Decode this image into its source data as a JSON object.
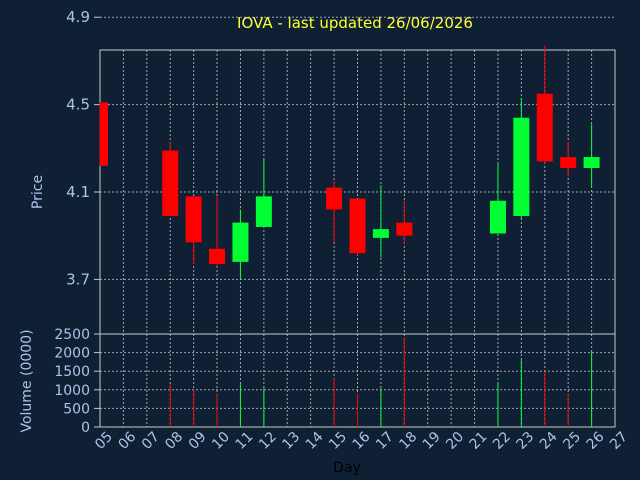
{
  "title": "IOVA - last updated 26/06/2026",
  "colors": {
    "background": "#0f2035",
    "grid": "#c8c8c8",
    "up": "#00ff33",
    "down": "#ff0000",
    "title": "#ffff33",
    "tick": "#a9c5e6"
  },
  "chart_data": [
    {
      "type": "candlestick",
      "ylabel": "Price",
      "ylim": [
        3.45,
        4.75
      ],
      "yticks": [
        "3.7",
        "4.1",
        "4.5",
        "4.9"
      ],
      "ytick_values": [
        3.7,
        4.1,
        4.5,
        4.9
      ],
      "xlim": [
        5,
        27
      ],
      "grid": true,
      "candles": [
        {
          "day": 5,
          "open": 4.51,
          "high": 4.51,
          "low": 4.22,
          "close": 4.22
        },
        {
          "day": 8,
          "open": 4.29,
          "high": 4.33,
          "low": 3.99,
          "close": 3.99
        },
        {
          "day": 9,
          "open": 4.08,
          "high": 4.08,
          "low": 3.77,
          "close": 3.87
        },
        {
          "day": 10,
          "open": 3.84,
          "high": 4.08,
          "low": 3.76,
          "close": 3.77
        },
        {
          "day": 11,
          "open": 3.78,
          "high": 4.02,
          "low": 3.7,
          "close": 3.96
        },
        {
          "day": 12,
          "open": 3.94,
          "high": 4.25,
          "low": 3.94,
          "close": 4.08
        },
        {
          "day": 15,
          "open": 4.12,
          "high": 4.15,
          "low": 3.87,
          "close": 4.02
        },
        {
          "day": 16,
          "open": 4.07,
          "high": 4.07,
          "low": 3.81,
          "close": 3.82
        },
        {
          "day": 17,
          "open": 3.89,
          "high": 4.13,
          "low": 3.8,
          "close": 3.93
        },
        {
          "day": 18,
          "open": 3.96,
          "high": 4.06,
          "low": 3.86,
          "close": 3.9
        },
        {
          "day": 22,
          "open": 3.91,
          "high": 4.23,
          "low": 3.91,
          "close": 4.06
        },
        {
          "day": 23,
          "open": 3.99,
          "high": 4.53,
          "low": 3.98,
          "close": 4.44
        },
        {
          "day": 24,
          "open": 4.55,
          "high": 4.77,
          "low": 4.23,
          "close": 4.24
        },
        {
          "day": 25,
          "open": 4.26,
          "high": 4.33,
          "low": 4.17,
          "close": 4.21
        },
        {
          "day": 26,
          "open": 4.21,
          "high": 4.41,
          "low": 4.12,
          "close": 4.26
        }
      ]
    },
    {
      "type": "bar",
      "ylabel": "Volume (0000)",
      "xlabel": "Day",
      "ylim": [
        0,
        2500
      ],
      "yticks": [
        "0",
        "500",
        "1000",
        "1500",
        "2000",
        "2500"
      ],
      "ytick_values": [
        0,
        500,
        1000,
        1500,
        2000,
        2500
      ],
      "xlim": [
        5,
        27
      ],
      "xticks": [
        "05",
        "06",
        "07",
        "08",
        "09",
        "10",
        "11",
        "12",
        "13",
        "14",
        "15",
        "16",
        "17",
        "18",
        "19",
        "20",
        "21",
        "22",
        "23",
        "24",
        "25",
        "26",
        "27"
      ],
      "grid": true,
      "bars": [
        {
          "day": 8,
          "value": 1150,
          "dir": "down"
        },
        {
          "day": 9,
          "value": 1000,
          "dir": "down"
        },
        {
          "day": 10,
          "value": 900,
          "dir": "down"
        },
        {
          "day": 11,
          "value": 1150,
          "dir": "up"
        },
        {
          "day": 12,
          "value": 1050,
          "dir": "up"
        },
        {
          "day": 15,
          "value": 1300,
          "dir": "down"
        },
        {
          "day": 16,
          "value": 900,
          "dir": "down"
        },
        {
          "day": 17,
          "value": 1050,
          "dir": "up"
        },
        {
          "day": 18,
          "value": 2400,
          "dir": "down"
        },
        {
          "day": 22,
          "value": 1200,
          "dir": "up"
        },
        {
          "day": 23,
          "value": 1800,
          "dir": "up"
        },
        {
          "day": 24,
          "value": 1500,
          "dir": "down"
        },
        {
          "day": 25,
          "value": 900,
          "dir": "down"
        },
        {
          "day": 26,
          "value": 2050,
          "dir": "up"
        }
      ]
    }
  ]
}
